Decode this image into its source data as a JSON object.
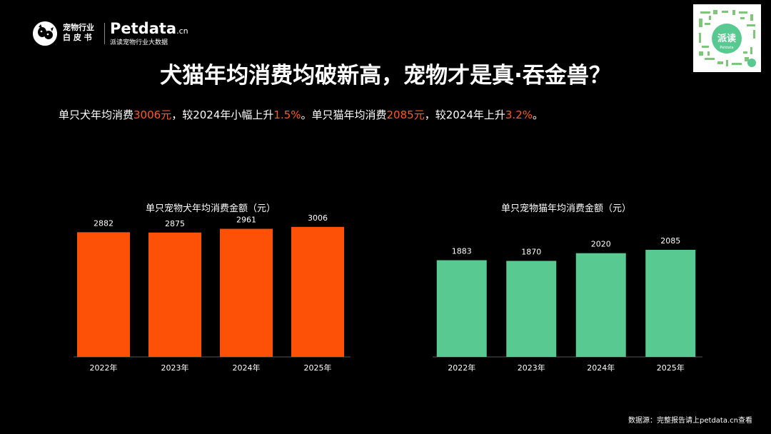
{
  "header": {
    "logo_line1": "宠物行业",
    "logo_line2": "白 皮 书",
    "brand_name": "Petdata",
    "brand_suffix": ".cn",
    "brand_subtitle": "派读宠物行业大数据"
  },
  "qr": {
    "center_label": "派读",
    "center_sublabel": "Petdata"
  },
  "title": "犬猫年均消费均破新高，宠物才是真·吞金兽？",
  "summary": {
    "p1": "单只犬年均消费",
    "v1": "3006元",
    "p2": "，较2024年小幅上升",
    "v2": "1.5%",
    "p3": "。单只猫年均消费",
    "v3": "2085元",
    "p4": "，较2024年上升",
    "v4": "3.2%",
    "p5": "。"
  },
  "colors": {
    "dog_bar": "#fc5106",
    "cat_bar": "#57c991",
    "highlight": "#ff5a1f"
  },
  "chart_data": [
    {
      "type": "bar",
      "title": "单只宠物犬年均消费金额（元）",
      "categories": [
        "2022年",
        "2023年",
        "2024年",
        "2025年"
      ],
      "values": [
        2882,
        2875,
        2961,
        3006
      ],
      "data_labels": [
        "2882",
        "2875",
        "2961",
        "3006"
      ],
      "ylim": [
        0,
        3300
      ],
      "grid": false,
      "legend": "none"
    },
    {
      "type": "bar",
      "title": "单只宠物猫年均消费金额（元）",
      "categories": [
        "2022年",
        "2023年",
        "2024年",
        "2025年"
      ],
      "values": [
        1883,
        1870,
        2020,
        2085
      ],
      "data_labels": [
        "1883",
        "1870",
        "2020",
        "2085"
      ],
      "ylim": [
        0,
        2780
      ],
      "grid": false,
      "legend": "none"
    }
  ],
  "footer": "数据源：完整报告请上petdata.cn查看"
}
